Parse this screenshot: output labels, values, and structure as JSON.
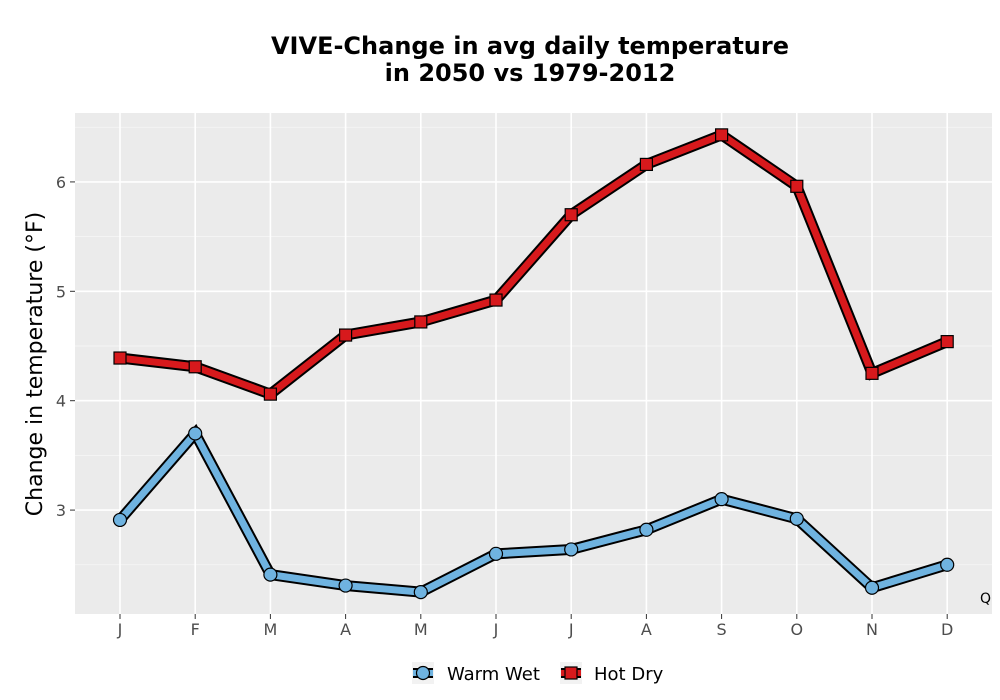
{
  "chart_data": {
    "type": "line",
    "title_lines": [
      "VIVE-Change in avg daily temperature",
      "in 2050 vs 1979-2012"
    ],
    "xlabel": "",
    "ylabel": "Change in temperature (°F)",
    "categories": [
      "J",
      "F",
      "M",
      "A",
      "M",
      "J",
      "J",
      "A",
      "S",
      "O",
      "N",
      "D"
    ],
    "ylim": [
      2.05,
      6.63
    ],
    "yticks": [
      3,
      4,
      5,
      6
    ],
    "grid": true,
    "legend_position": "bottom",
    "corner_label": "Q",
    "series": [
      {
        "name": "Warm Wet",
        "marker": "circle",
        "color": "#6FB3E0",
        "values": [
          2.91,
          3.7,
          2.41,
          2.31,
          2.25,
          2.6,
          2.64,
          2.82,
          3.1,
          2.92,
          2.29,
          2.5
        ]
      },
      {
        "name": "Hot Dry",
        "marker": "square",
        "color": "#D7191C",
        "values": [
          4.39,
          4.31,
          4.06,
          4.6,
          4.72,
          4.92,
          5.7,
          6.16,
          6.43,
          5.96,
          4.25,
          4.54
        ]
      }
    ]
  }
}
